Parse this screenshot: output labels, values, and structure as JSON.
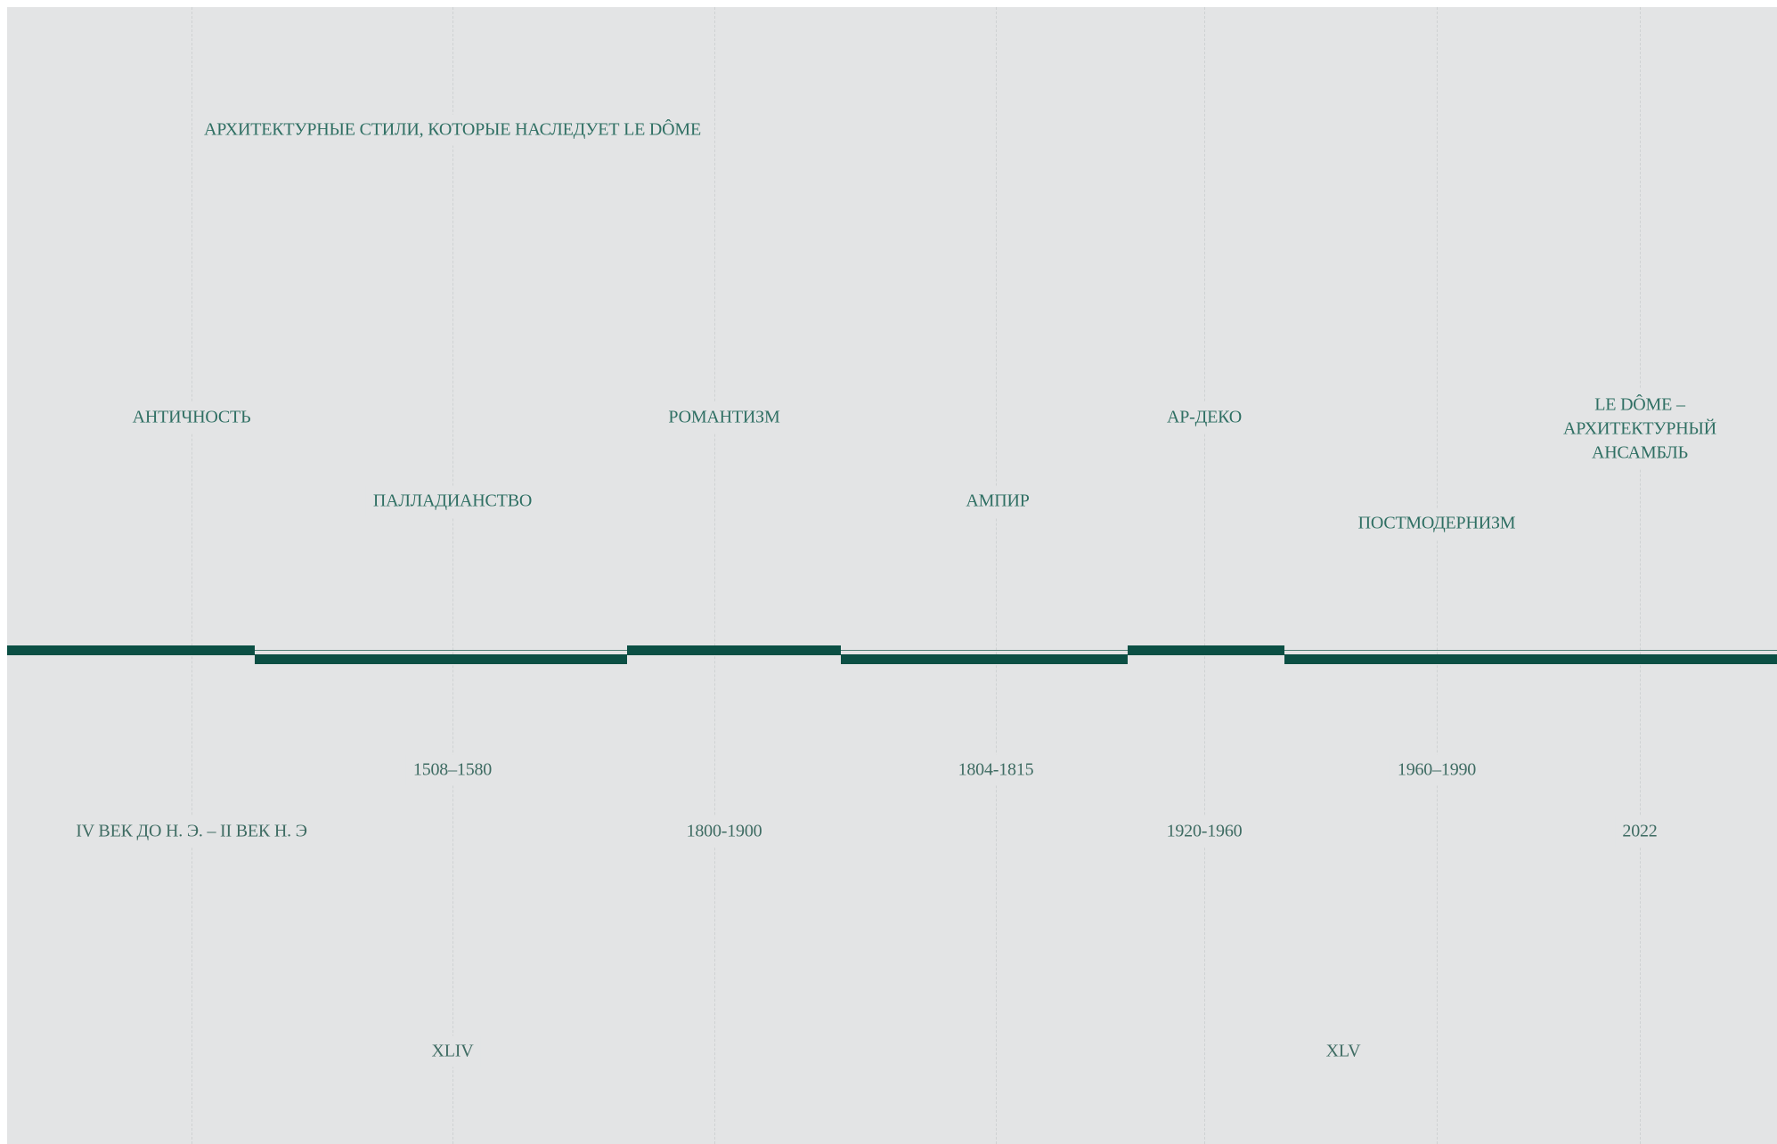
{
  "title": "АРХИТЕКТУРНЫЕ СТИЛИ, КОТОРЫЕ НАСЛЕДУЕТ LE DÔME",
  "colors": {
    "background": "#e3e4e5",
    "accent": "#0b4f44",
    "text": "#2f6f63",
    "gridline": "#cfd2d3"
  },
  "styles": [
    {
      "name": "АНТИЧНОСТЬ",
      "dates": "IV ВЕК ДО Н. Э. – II ВЕК Н. Э"
    },
    {
      "name": "ПАЛЛАДИАНСТВО",
      "dates": "1508–1580"
    },
    {
      "name": "РОМАНТИЗМ",
      "dates": "1800-1900"
    },
    {
      "name": "АМПИР",
      "dates": "1804-1815"
    },
    {
      "name": "АР-ДЕКО",
      "dates": "1920-1960"
    },
    {
      "name": "ПОСТМОДЕРНИЗМ",
      "dates": "1960–1990"
    },
    {
      "name": "LE DÔME – АРХИТЕКТУРНЫЙ АНСАМБЛЬ",
      "dates": "2022"
    }
  ],
  "centuries": [
    "XLIV",
    "XLV"
  ]
}
